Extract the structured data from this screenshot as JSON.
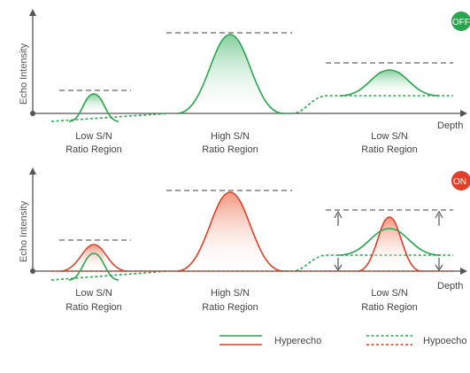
{
  "panel_off": {
    "badge": "OFF",
    "y_axis_label": "Echo Intensity",
    "x_axis_label": "Depth",
    "regions": [
      {
        "line1": "Low S/N",
        "line2": "Ratio Region"
      },
      {
        "line1": "High S/N",
        "line2": "Ratio Region"
      },
      {
        "line1": "Low S/N",
        "line2": "Ratio Region"
      }
    ]
  },
  "panel_on": {
    "badge": "ON",
    "y_axis_label": "Echo Intensity",
    "x_axis_label": "Depth",
    "regions": [
      {
        "line1": "Low S/N",
        "line2": "Ratio Region"
      },
      {
        "line1": "High S/N",
        "line2": "Ratio Region"
      },
      {
        "line1": "Low S/N",
        "line2": "Ratio Region"
      }
    ]
  },
  "legend": {
    "hyperecho": "Hyperecho",
    "hypoecho": "Hypoecho"
  },
  "colors": {
    "green": "#2aa44f",
    "red": "#d8412a",
    "gray_dash": "#666666",
    "badge_off": "#2aa44f",
    "badge_on": "#e0402a"
  }
}
